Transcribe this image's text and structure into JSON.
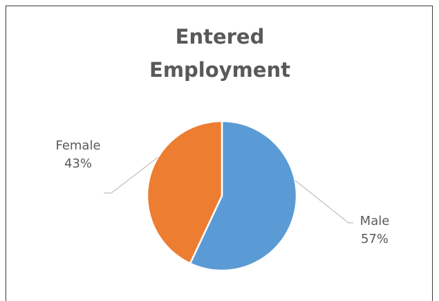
{
  "chart_data": {
    "type": "pie",
    "title": "Entered Employment",
    "title_lines": [
      "Entered",
      "Employment"
    ],
    "slices": [
      {
        "category": "Male",
        "value": 57,
        "percent_label": "57%",
        "color": "#5b9bd5"
      },
      {
        "category": "Female",
        "value": 43,
        "percent_label": "43%",
        "color": "#ed7d31"
      }
    ],
    "label_position": "outside-with-leader-lines",
    "legend": "none"
  }
}
